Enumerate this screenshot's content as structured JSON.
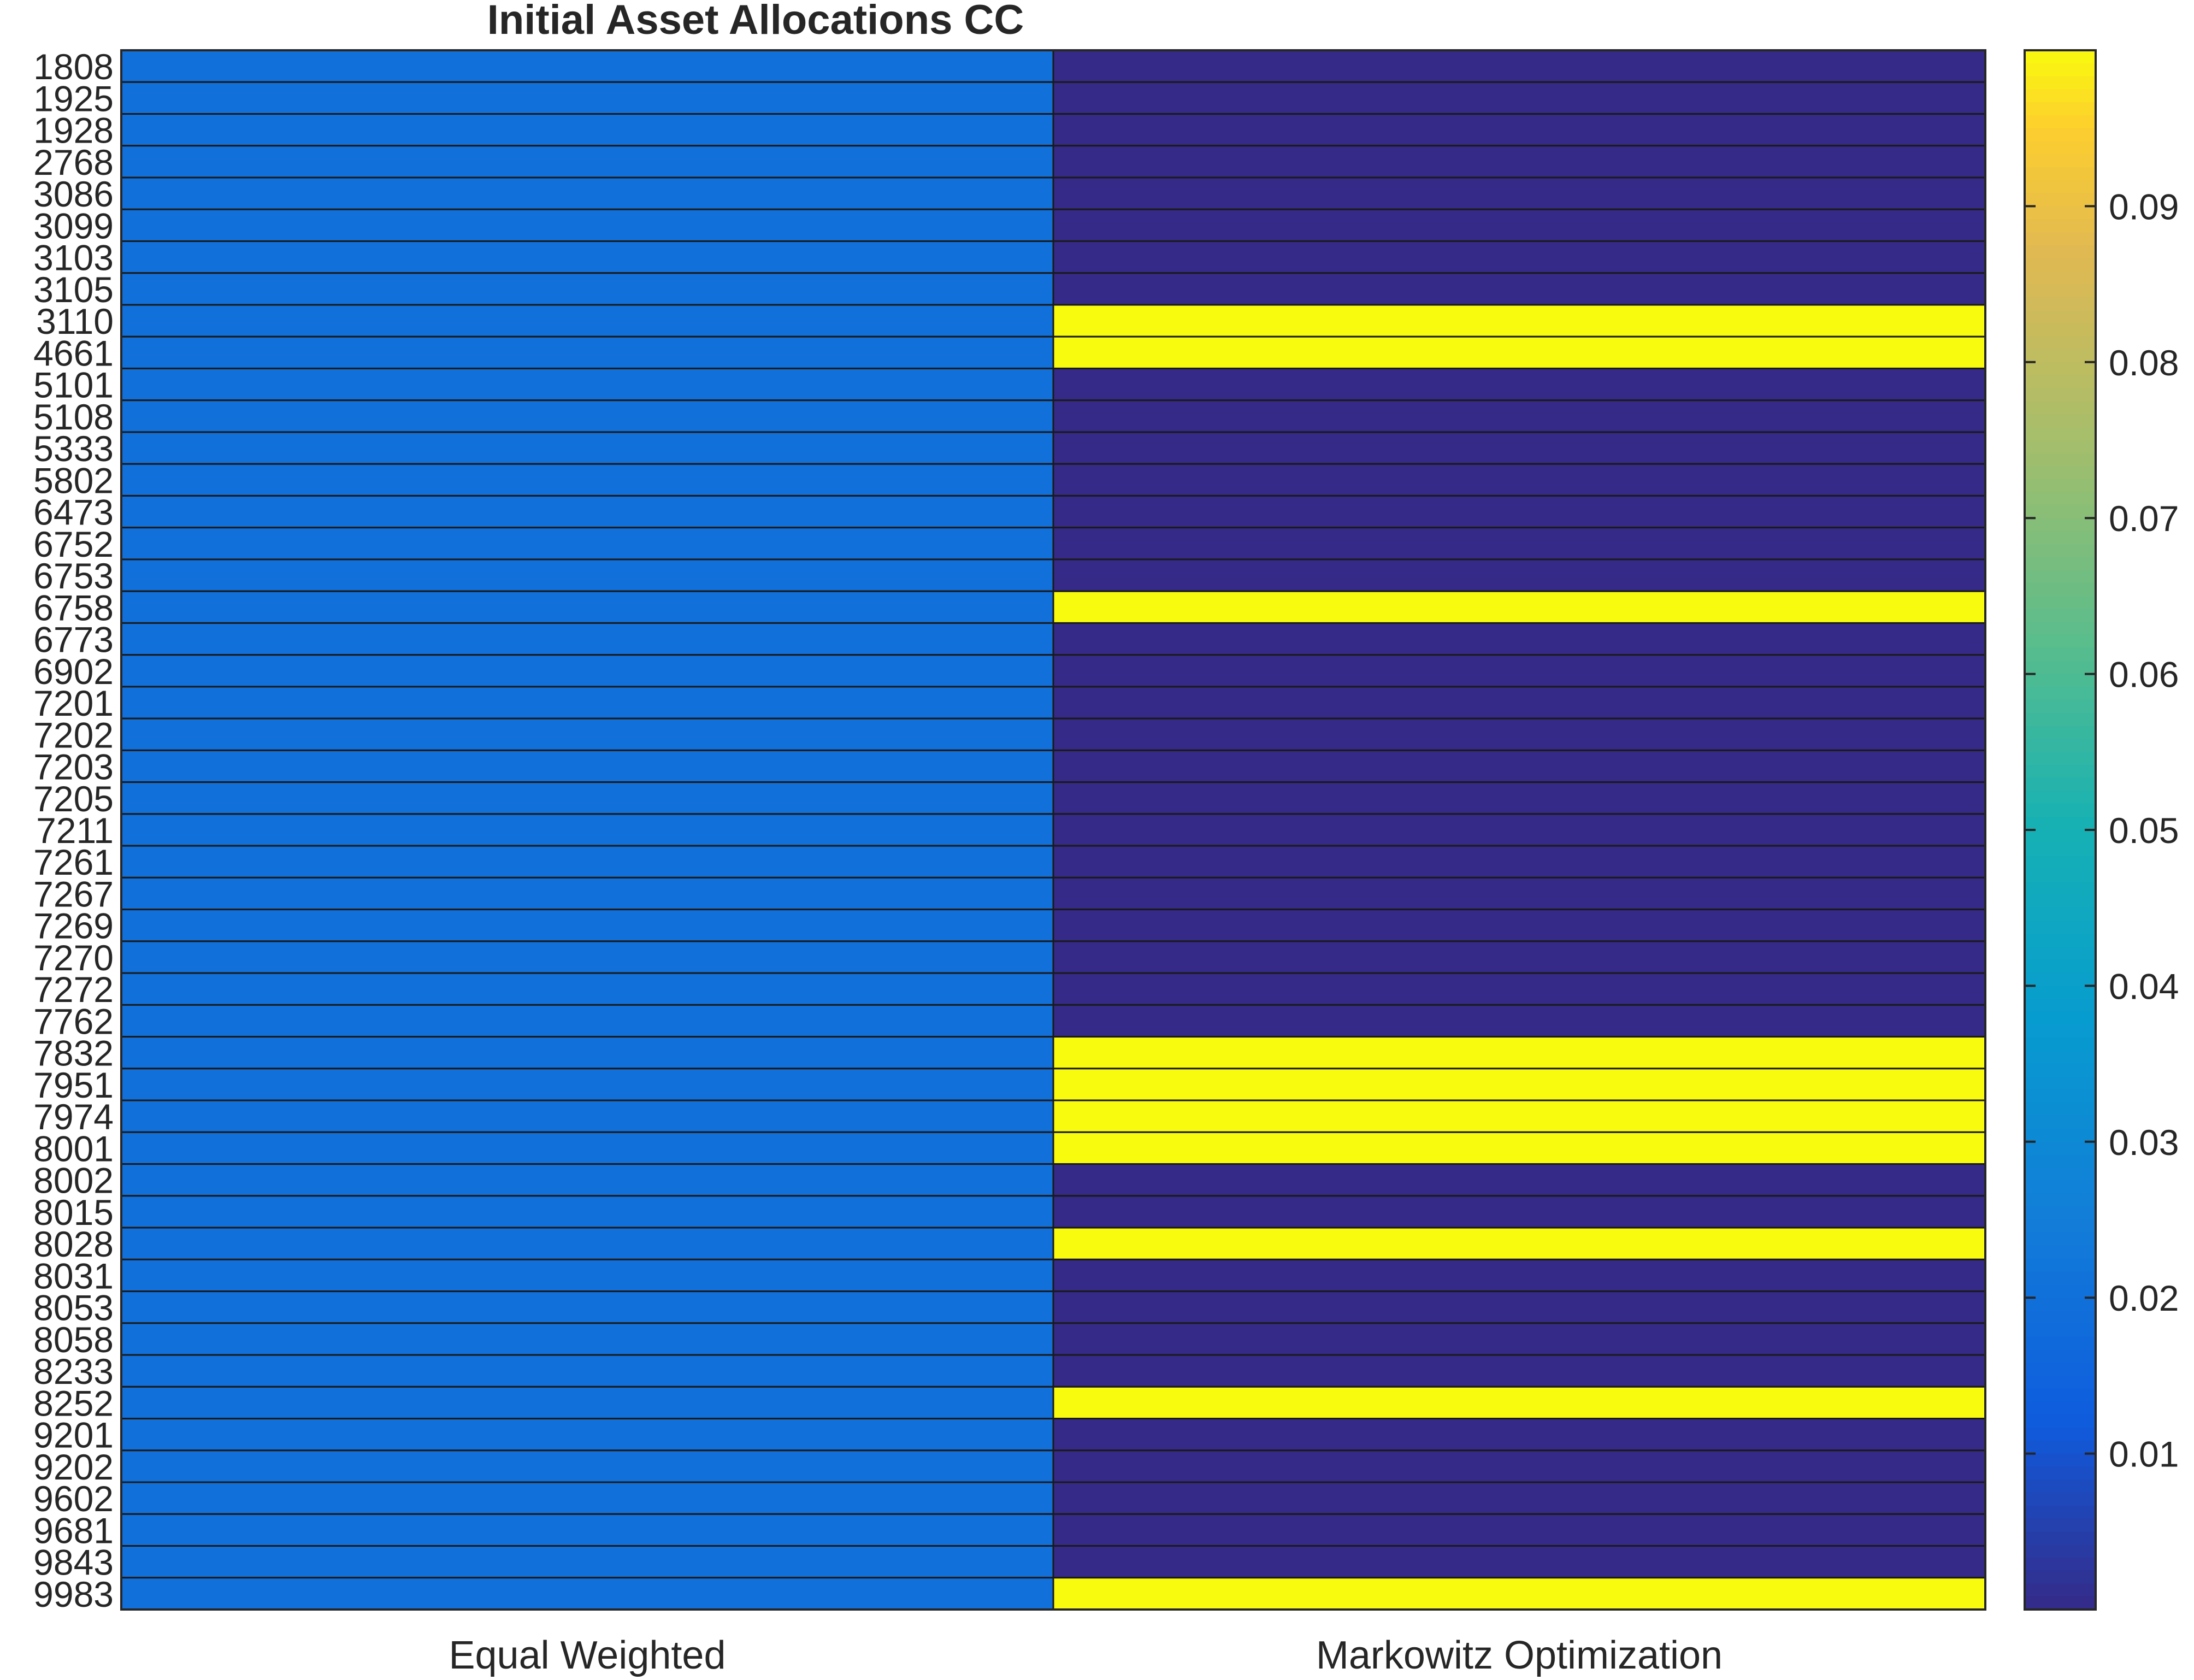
{
  "chart_data": {
    "type": "heatmap",
    "title": "Initial Asset Allocations CC",
    "xlabel": "",
    "ylabel": "",
    "columns": [
      "Equal Weighted",
      "Markowitz Optimization"
    ],
    "rows": [
      "1808",
      "1925",
      "1928",
      "2768",
      "3086",
      "3099",
      "3103",
      "3105",
      "3110",
      "4661",
      "5101",
      "5108",
      "5333",
      "5802",
      "6473",
      "6752",
      "6753",
      "6758",
      "6773",
      "6902",
      "7201",
      "7202",
      "7203",
      "7205",
      "7211",
      "7261",
      "7267",
      "7269",
      "7270",
      "7272",
      "7762",
      "7832",
      "7951",
      "7974",
      "8001",
      "8002",
      "8015",
      "8028",
      "8031",
      "8053",
      "8058",
      "8233",
      "8252",
      "9201",
      "9202",
      "9602",
      "9681",
      "9843",
      "9983"
    ],
    "values": [
      [
        0.02,
        0.0
      ],
      [
        0.02,
        0.0
      ],
      [
        0.02,
        0.0
      ],
      [
        0.02,
        0.0
      ],
      [
        0.02,
        0.0
      ],
      [
        0.02,
        0.0
      ],
      [
        0.02,
        0.0
      ],
      [
        0.02,
        0.0
      ],
      [
        0.02,
        0.1
      ],
      [
        0.02,
        0.1
      ],
      [
        0.02,
        0.0
      ],
      [
        0.02,
        0.0
      ],
      [
        0.02,
        0.0
      ],
      [
        0.02,
        0.0
      ],
      [
        0.02,
        0.0
      ],
      [
        0.02,
        0.0
      ],
      [
        0.02,
        0.0
      ],
      [
        0.02,
        0.1
      ],
      [
        0.02,
        0.0
      ],
      [
        0.02,
        0.0
      ],
      [
        0.02,
        0.0
      ],
      [
        0.02,
        0.0
      ],
      [
        0.02,
        0.0
      ],
      [
        0.02,
        0.0
      ],
      [
        0.02,
        0.0
      ],
      [
        0.02,
        0.0
      ],
      [
        0.02,
        0.0
      ],
      [
        0.02,
        0.0
      ],
      [
        0.02,
        0.0
      ],
      [
        0.02,
        0.0
      ],
      [
        0.02,
        0.0
      ],
      [
        0.02,
        0.1
      ],
      [
        0.02,
        0.1
      ],
      [
        0.02,
        0.1
      ],
      [
        0.02,
        0.1
      ],
      [
        0.02,
        0.0
      ],
      [
        0.02,
        0.0
      ],
      [
        0.02,
        0.1
      ],
      [
        0.02,
        0.0
      ],
      [
        0.02,
        0.0
      ],
      [
        0.02,
        0.0
      ],
      [
        0.02,
        0.0
      ],
      [
        0.02,
        0.1
      ],
      [
        0.02,
        0.0
      ],
      [
        0.02,
        0.0
      ],
      [
        0.02,
        0.0
      ],
      [
        0.02,
        0.0
      ],
      [
        0.02,
        0.0
      ],
      [
        0.02,
        0.1
      ]
    ],
    "colorbar": {
      "colormap": "parula",
      "min": 0.0,
      "max": 0.1,
      "ticks": [
        "0.01",
        "0.02",
        "0.03",
        "0.04",
        "0.05",
        "0.06",
        "0.07",
        "0.08",
        "0.09"
      ],
      "tick_values": [
        0.01,
        0.02,
        0.03,
        0.04,
        0.05,
        0.06,
        0.07,
        0.08,
        0.09
      ]
    },
    "grid": false,
    "legend": "colorbar-right"
  }
}
